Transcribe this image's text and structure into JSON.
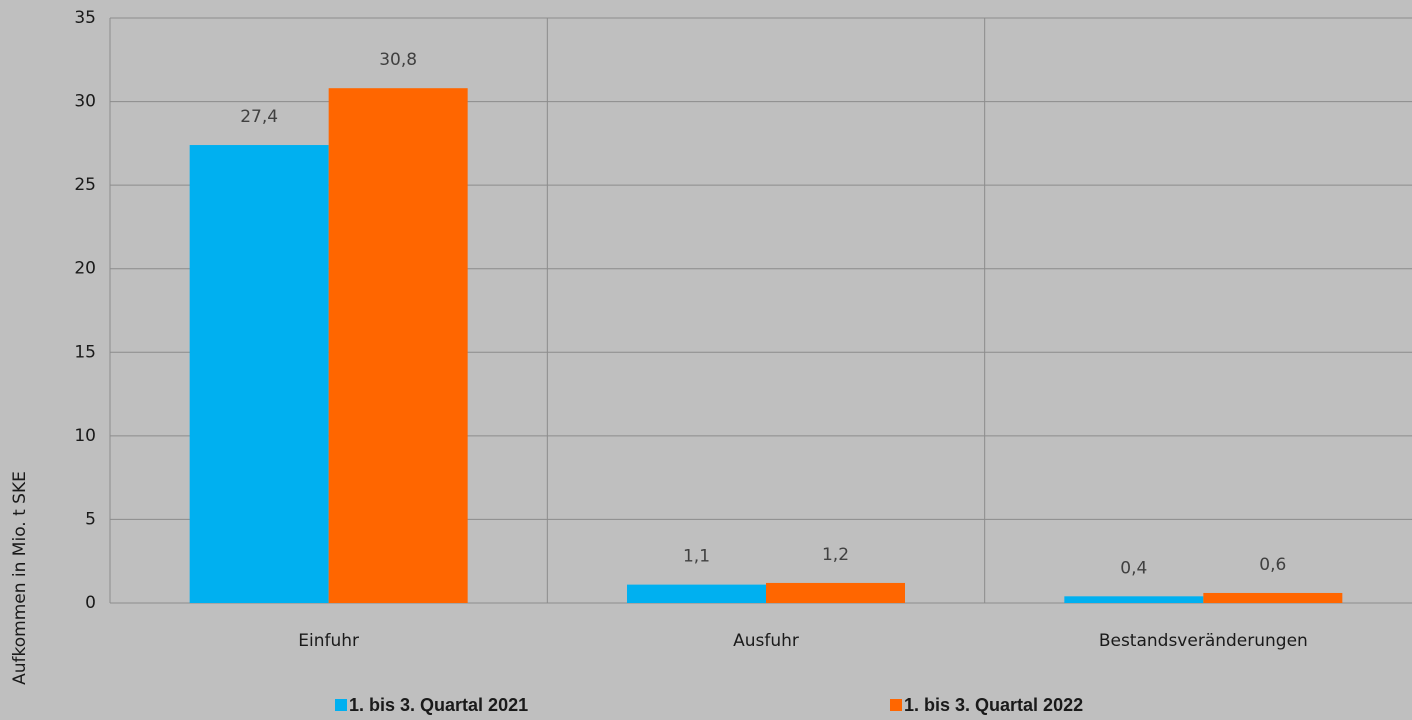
{
  "chart_data": {
    "type": "bar",
    "y_label": "Aufkommen  in Mio. t SKE",
    "categories": [
      "Einfuhr",
      "Ausfuhr",
      "Bestandsveränderungen"
    ],
    "series": [
      {
        "name": "1. bis 3. Quartal 2021",
        "color": "#00b0f0",
        "values": [
          27.4,
          1.1,
          0.4
        ],
        "value_labels": [
          "27,4",
          "1,1",
          "0,4"
        ]
      },
      {
        "name": "1. bis 3. Quartal 2022",
        "color": "#ff6600",
        "values": [
          30.8,
          1.2,
          0.6
        ],
        "value_labels": [
          "30,8",
          "1,2",
          "0,6"
        ]
      }
    ],
    "ylim": [
      0,
      35
    ],
    "yticks": [
      0,
      5,
      10,
      15,
      20,
      25,
      30,
      35
    ],
    "grid": true
  }
}
